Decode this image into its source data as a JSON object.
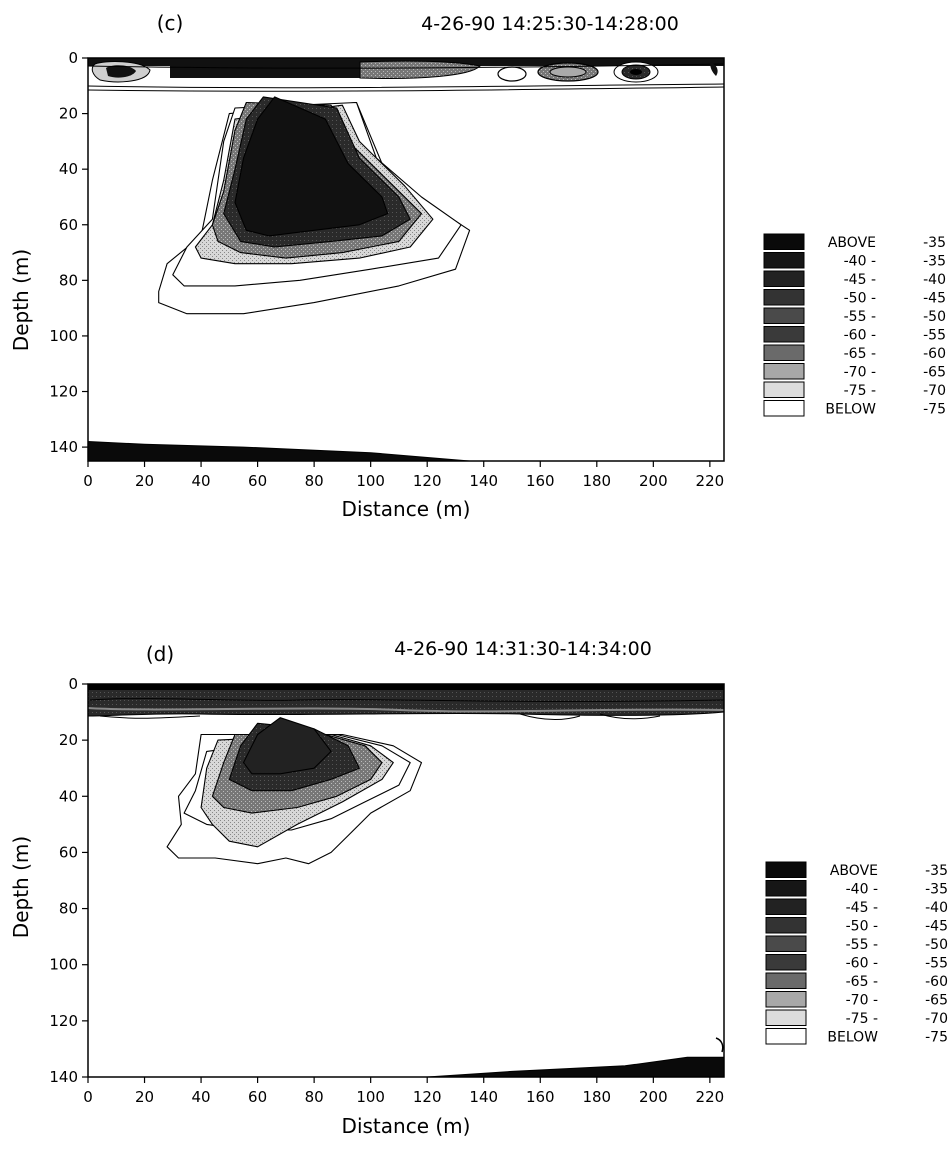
{
  "chart_data": [
    {
      "type": "heatmap",
      "panel_label": "(c)",
      "title": "4-26-90 14:25:30-14:28:00",
      "xlabel": "Distance (m)",
      "ylabel": "Depth (m)",
      "xlim": [
        0,
        225
      ],
      "ylim": [
        0,
        145
      ],
      "y_inverted": true,
      "xticks": [
        "0",
        "20",
        "40",
        "60",
        "80",
        "100",
        "120",
        "140",
        "160",
        "180",
        "200",
        "220"
      ],
      "yticks": [
        "0",
        "20",
        "40",
        "60",
        "80",
        "100",
        "120",
        "140"
      ],
      "legend_position": "right",
      "legend": [
        {
          "label": "ABOVE",
          "value": "-35",
          "color": "#0a0a0a"
        },
        {
          "label": "-40 -",
          "value": "-35",
          "color": "#161616"
        },
        {
          "label": "-45 -",
          "value": "-40",
          "color": "#222222"
        },
        {
          "label": "-50 -",
          "value": "-45",
          "color": "#333333"
        },
        {
          "label": "-55 -",
          "value": "-50",
          "color": "#4a4a4a"
        },
        {
          "label": "-60 -",
          "value": "-55",
          "color": "#3a3a3a"
        },
        {
          "label": "-65 -",
          "value": "-60",
          "color": "#6a6a6a"
        },
        {
          "label": "-70 -",
          "value": "-65",
          "color": "#a8a8a8"
        },
        {
          "label": "-75 -",
          "value": "-70",
          "color": "#dcdcdc"
        },
        {
          "label": "BELOW",
          "value": "-75",
          "color": "#ffffff"
        }
      ],
      "region_contours": [
        {
          "level": "-80",
          "points": [
            [
              25,
              84
            ],
            [
              28,
              74
            ],
            [
              40,
              64
            ],
            [
              44,
              44
            ],
            [
              50,
              20
            ],
            [
              95,
              16
            ],
            [
              104,
              38
            ],
            [
              120,
              52
            ],
            [
              135,
              62
            ],
            [
              130,
              76
            ],
            [
              110,
              82
            ],
            [
              80,
              88
            ],
            [
              55,
              92
            ],
            [
              35,
              92
            ],
            [
              25,
              88
            ]
          ]
        },
        {
          "level": "-75",
          "points": [
            [
              30,
              78
            ],
            [
              35,
              68
            ],
            [
              44,
              58
            ],
            [
              48,
              30
            ],
            [
              52,
              18
            ],
            [
              95,
              16
            ],
            [
              102,
              36
            ],
            [
              118,
              50
            ],
            [
              132,
              60
            ],
            [
              124,
              72
            ],
            [
              100,
              76
            ],
            [
              75,
              80
            ],
            [
              52,
              82
            ],
            [
              34,
              82
            ]
          ]
        },
        {
          "level": "-70",
          "points": [
            [
              38,
              68
            ],
            [
              44,
              60
            ],
            [
              48,
              44
            ],
            [
              52,
              22
            ],
            [
              90,
              17
            ],
            [
              96,
              30
            ],
            [
              112,
              46
            ],
            [
              122,
              58
            ],
            [
              114,
              68
            ],
            [
              96,
              72
            ],
            [
              72,
              74
            ],
            [
              52,
              74
            ],
            [
              40,
              72
            ]
          ]
        },
        {
          "level": "-60",
          "points": [
            [
              44,
              60
            ],
            [
              48,
              48
            ],
            [
              52,
              26
            ],
            [
              56,
              16
            ],
            [
              86,
              17
            ],
            [
              92,
              30
            ],
            [
              108,
              46
            ],
            [
              118,
              56
            ],
            [
              110,
              66
            ],
            [
              90,
              70
            ],
            [
              70,
              72
            ],
            [
              54,
              70
            ],
            [
              46,
              66
            ]
          ]
        },
        {
          "level": "-50",
          "points": [
            [
              48,
              56
            ],
            [
              52,
              40
            ],
            [
              56,
              22
            ],
            [
              62,
              14
            ],
            [
              88,
              18
            ],
            [
              96,
              36
            ],
            [
              110,
              50
            ],
            [
              114,
              58
            ],
            [
              104,
              64
            ],
            [
              86,
              66
            ],
            [
              66,
              68
            ],
            [
              54,
              66
            ]
          ]
        },
        {
          "level": "-40",
          "points": [
            [
              52,
              52
            ],
            [
              55,
              36
            ],
            [
              60,
              22
            ],
            [
              66,
              14
            ],
            [
              84,
              22
            ],
            [
              92,
              38
            ],
            [
              104,
              50
            ],
            [
              106,
              56
            ],
            [
              96,
              60
            ],
            [
              80,
              62
            ],
            [
              64,
              64
            ],
            [
              56,
              62
            ]
          ]
        }
      ],
      "bottom_band": {
        "level": "-35",
        "points": [
          [
            0,
            138
          ],
          [
            20,
            139
          ],
          [
            55,
            140
          ],
          [
            100,
            142
          ],
          [
            135,
            145
          ],
          [
            0,
            145
          ]
        ]
      }
    },
    {
      "type": "heatmap",
      "panel_label": "(d)",
      "title": "4-26-90 14:31:30-14:34:00",
      "xlabel": "Distance (m)",
      "ylabel": "Depth (m)",
      "xlim": [
        0,
        225
      ],
      "ylim": [
        0,
        140
      ],
      "y_inverted": true,
      "xticks": [
        "0",
        "20",
        "40",
        "60",
        "80",
        "100",
        "120",
        "140",
        "160",
        "180",
        "200",
        "220"
      ],
      "yticks": [
        "0",
        "20",
        "40",
        "60",
        "80",
        "100",
        "120",
        "140"
      ],
      "legend_position": "right",
      "legend": [
        {
          "label": "ABOVE",
          "value": "-35",
          "color": "#0a0a0a"
        },
        {
          "label": "-40 -",
          "value": "-35",
          "color": "#161616"
        },
        {
          "label": "-45 -",
          "value": "-40",
          "color": "#222222"
        },
        {
          "label": "-50 -",
          "value": "-45",
          "color": "#333333"
        },
        {
          "label": "-55 -",
          "value": "-50",
          "color": "#4a4a4a"
        },
        {
          "label": "-60 -",
          "value": "-55",
          "color": "#3a3a3a"
        },
        {
          "label": "-65 -",
          "value": "-60",
          "color": "#6a6a6a"
        },
        {
          "label": "-70 -",
          "value": "-65",
          "color": "#a8a8a8"
        },
        {
          "label": "-75 -",
          "value": "-70",
          "color": "#dcdcdc"
        },
        {
          "label": "BELOW",
          "value": "-75",
          "color": "#ffffff"
        }
      ],
      "region_contours": [
        {
          "level": "-80",
          "points": [
            [
              28,
              58
            ],
            [
              33,
              50
            ],
            [
              32,
              40
            ],
            [
              38,
              32
            ],
            [
              40,
              18
            ],
            [
              90,
              18
            ],
            [
              108,
              22
            ],
            [
              118,
              28
            ],
            [
              114,
              38
            ],
            [
              100,
              46
            ],
            [
              92,
              54
            ],
            [
              86,
              60
            ],
            [
              78,
              64
            ],
            [
              70,
              62
            ],
            [
              60,
              64
            ],
            [
              45,
              62
            ],
            [
              32,
              62
            ]
          ]
        },
        {
          "level": "-75",
          "points": [
            [
              34,
              46
            ],
            [
              38,
              38
            ],
            [
              42,
              24
            ],
            [
              88,
              18
            ],
            [
              104,
              22
            ],
            [
              114,
              28
            ],
            [
              110,
              36
            ],
            [
              98,
              42
            ],
            [
              86,
              48
            ],
            [
              72,
              52
            ],
            [
              56,
              52
            ],
            [
              42,
              50
            ]
          ]
        },
        {
          "level": "-70",
          "points": [
            [
              40,
              44
            ],
            [
              42,
              30
            ],
            [
              46,
              20
            ],
            [
              86,
              18
            ],
            [
              100,
              22
            ],
            [
              108,
              28
            ],
            [
              104,
              34
            ],
            [
              90,
              42
            ],
            [
              74,
              50
            ],
            [
              60,
              58
            ],
            [
              50,
              56
            ],
            [
              44,
              50
            ]
          ]
        },
        {
          "level": "-65",
          "points": [
            [
              44,
              40
            ],
            [
              48,
              28
            ],
            [
              52,
              18
            ],
            [
              84,
              18
            ],
            [
              98,
              22
            ],
            [
              104,
              28
            ],
            [
              100,
              34
            ],
            [
              88,
              40
            ],
            [
              74,
              44
            ],
            [
              58,
              46
            ],
            [
              48,
              44
            ]
          ]
        },
        {
          "level": "-55",
          "points": [
            [
              50,
              34
            ],
            [
              54,
              22
            ],
            [
              60,
              14
            ],
            [
              80,
              16
            ],
            [
              92,
              22
            ],
            [
              96,
              30
            ],
            [
              86,
              34
            ],
            [
              72,
              38
            ],
            [
              58,
              38
            ]
          ]
        },
        {
          "level": "-45",
          "points": [
            [
              55,
              28
            ],
            [
              60,
              18
            ],
            [
              68,
              12
            ],
            [
              80,
              16
            ],
            [
              86,
              24
            ],
            [
              80,
              30
            ],
            [
              68,
              32
            ],
            [
              58,
              32
            ]
          ]
        }
      ],
      "bottom_band": {
        "level": "-35",
        "points": [
          [
            120,
            140
          ],
          [
            150,
            138
          ],
          [
            190,
            136
          ],
          [
            212,
            133
          ],
          [
            225,
            133
          ],
          [
            225,
            140
          ]
        ]
      }
    }
  ]
}
